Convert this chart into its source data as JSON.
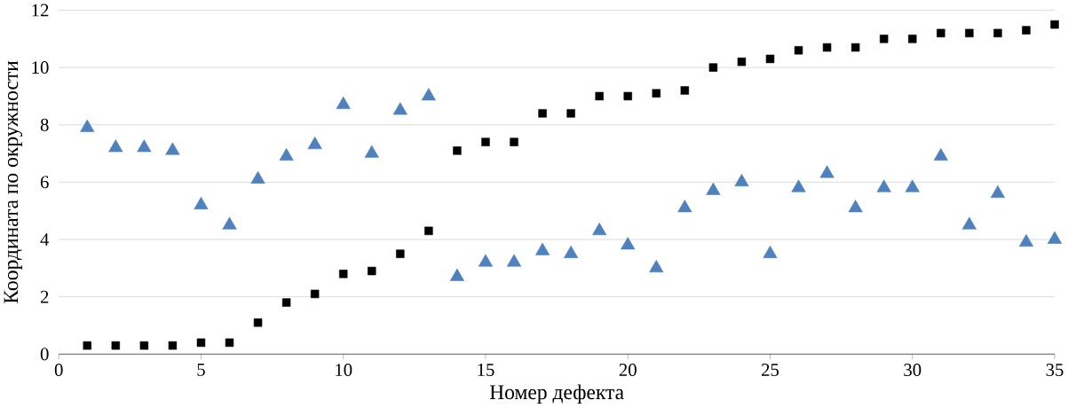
{
  "chart_data": {
    "type": "scatter",
    "xlabel": "Номер дефекта",
    "ylabel": "Координата по окружности",
    "x": [
      1,
      2,
      3,
      4,
      5,
      6,
      7,
      8,
      9,
      10,
      11,
      12,
      13,
      14,
      15,
      16,
      17,
      18,
      19,
      20,
      21,
      22,
      23,
      24,
      25,
      26,
      27,
      28,
      29,
      30,
      31,
      32,
      33,
      34,
      35
    ],
    "series": [
      {
        "color": "#4f81bd",
        "marker": "triangle",
        "values": [
          7.9,
          7.2,
          7.2,
          7.1,
          5.2,
          4.5,
          6.1,
          6.9,
          7.3,
          8.7,
          7.0,
          8.5,
          9.0,
          2.7,
          3.2,
          3.2,
          3.6,
          3.5,
          4.3,
          3.8,
          3.0,
          5.1,
          5.7,
          6.0,
          3.5,
          5.8,
          6.3,
          5.1,
          5.8,
          5.8,
          6.9,
          4.5,
          5.6,
          3.9,
          4.0
        ]
      },
      {
        "color": "#000000",
        "marker": "square",
        "values": [
          0.3,
          0.3,
          0.3,
          0.3,
          0.4,
          0.4,
          1.1,
          1.8,
          2.1,
          2.8,
          2.9,
          3.5,
          4.3,
          7.1,
          7.4,
          7.4,
          8.4,
          8.4,
          9.0,
          9.0,
          9.1,
          9.2,
          10.0,
          10.2,
          10.3,
          10.6,
          10.7,
          10.7,
          11.0,
          11.0,
          11.2,
          11.2,
          11.2,
          11.3,
          11.5
        ]
      }
    ],
    "xlim": [
      0,
      35
    ],
    "xticks": [
      0,
      5,
      10,
      15,
      20,
      25,
      30,
      35
    ],
    "ylim": [
      0,
      12
    ],
    "yticks": [
      0,
      2,
      4,
      6,
      8,
      10,
      12
    ],
    "grid": "y"
  }
}
